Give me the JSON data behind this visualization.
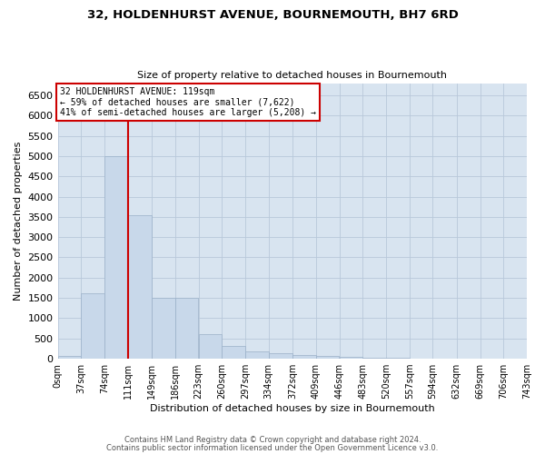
{
  "title_line1": "32, HOLDENHURST AVENUE, BOURNEMOUTH, BH7 6RD",
  "title_line2": "Size of property relative to detached houses in Bournemouth",
  "xlabel": "Distribution of detached houses by size in Bournemouth",
  "ylabel": "Number of detached properties",
  "footnote1": "Contains HM Land Registry data © Crown copyright and database right 2024.",
  "footnote2": "Contains public sector information licensed under the Open Government Licence v3.0.",
  "bar_color": "#c8d8ea",
  "bar_edge_color": "#9ab0c8",
  "grid_color": "#b8c8da",
  "background_color": "#d8e4f0",
  "annotation_box_color": "#cc0000",
  "annotation_text_line1": "32 HOLDENHURST AVENUE: 119sqm",
  "annotation_text_line2": "← 59% of detached houses are smaller (7,622)",
  "annotation_text_line3": "41% of semi-detached houses are larger (5,208) →",
  "vline_color": "#cc0000",
  "vline_x_index": 3,
  "bins": [
    0,
    37,
    74,
    111,
    149,
    186,
    223,
    260,
    297,
    334,
    372,
    409,
    446,
    483,
    520,
    557,
    594,
    632,
    669,
    706,
    743
  ],
  "bin_labels": [
    "0sqm",
    "37sqm",
    "74sqm",
    "111sqm",
    "149sqm",
    "186sqm",
    "223sqm",
    "260sqm",
    "297sqm",
    "334sqm",
    "372sqm",
    "409sqm",
    "446sqm",
    "483sqm",
    "520sqm",
    "557sqm",
    "594sqm",
    "632sqm",
    "669sqm",
    "706sqm",
    "743sqm"
  ],
  "bar_heights": [
    60,
    1620,
    5000,
    3550,
    1500,
    1500,
    600,
    310,
    190,
    145,
    100,
    65,
    45,
    25,
    15,
    8,
    4,
    4,
    2,
    2
  ],
  "ylim": [
    0,
    6800
  ],
  "yticks": [
    0,
    500,
    1000,
    1500,
    2000,
    2500,
    3000,
    3500,
    4000,
    4500,
    5000,
    5500,
    6000,
    6500
  ]
}
